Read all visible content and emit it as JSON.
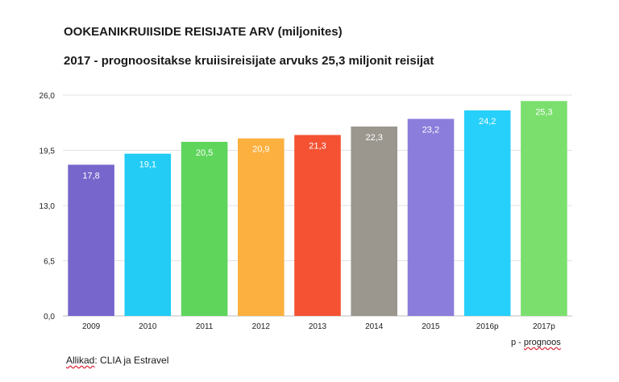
{
  "chart_data": {
    "type": "bar",
    "title": "OOKEANIKRUIISIDE REISIJATE ARV (miljonites)",
    "subtitle": "2017 - prognoositakse kruiisireisijate arvuks 25,3 miljonit reisijat",
    "categories": [
      "2009",
      "2010",
      "2011",
      "2012",
      "2013",
      "2014",
      "2015",
      "2016p",
      "2017p"
    ],
    "values": [
      17.8,
      19.1,
      20.5,
      20.9,
      21.3,
      22.3,
      23.2,
      24.2,
      25.3
    ],
    "value_labels": [
      "17,8",
      "19,1",
      "20,5",
      "20,9",
      "21,3",
      "22,3",
      "23,2",
      "24,2",
      "25,3"
    ],
    "colors": [
      "#7766cc",
      "#22ccf5",
      "#5fd55c",
      "#fbb040",
      "#f45233",
      "#9b978f",
      "#8a7ddb",
      "#26d0fa",
      "#7bdf6e"
    ],
    "ylim": [
      0,
      26
    ],
    "yticks": [
      0,
      6.5,
      13,
      19.5,
      26
    ],
    "ytick_labels": [
      "0,0",
      "6,5",
      "13,0",
      "19,5",
      "26,0"
    ],
    "grid": true,
    "xlabel": "",
    "ylabel": ""
  },
  "note": {
    "prefix": "p - ",
    "word": "prognoos"
  },
  "source": {
    "label": "Allikad",
    "text": ": CLIA ja Estravel"
  }
}
